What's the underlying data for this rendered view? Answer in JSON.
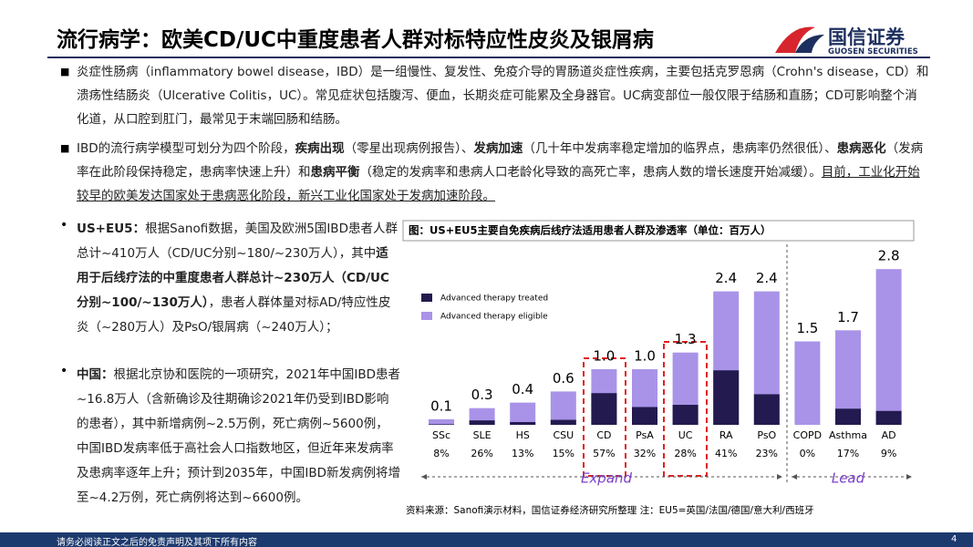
{
  "header": {
    "title": "流行病学：欧美CD/UC中重度患者人群对标特应性皮炎及银屑病",
    "logo_cn": "国信证券",
    "logo_en": "GUOSEN SECURITIES"
  },
  "top": {
    "paragraphs": [
      {
        "runs": [
          {
            "text": "炎症性肠病（inflammatory bowel disease，IBD）是一组慢性、复发性、免疫介导的胃肠道炎症性疾病，主要包括克罗恩病（Crohn's disease，CD）和溃疡性结肠炎（Ulcerative Colitis，UC）。常见症状包括腹泻、便血，长期炎症可能累及全身器官。UC病变部位一般仅限于结肠和直肠；CD可影响整个消化道，从口腔到肛门，最常见于末端回肠和结肠。"
          }
        ]
      },
      {
        "runs": [
          {
            "text": "IBD的流行病学模型可划分为四个阶段，"
          },
          {
            "text": "疾病出现",
            "style": "bold"
          },
          {
            "text": "（零星出现病例报告）、"
          },
          {
            "text": "发病加速",
            "style": "bold"
          },
          {
            "text": "（几十年中发病率稳定增加的临界点，患病率仍然很低）、"
          },
          {
            "text": "患病恶化",
            "style": "bold"
          },
          {
            "text": "（发病率在此阶段保持稳定，患病率快速上升）和"
          },
          {
            "text": "患病平衡",
            "style": "bold"
          },
          {
            "text": "（稳定的发病率和患病人口老龄化导致的高死亡率，患病人数的增长速度开始减缓）。"
          },
          {
            "text": "目前，工业化开始较早的欧美发达国家处于患病恶化阶段，新兴工业化国家处于发病加速阶段。",
            "style": "underline"
          }
        ]
      }
    ]
  },
  "left": {
    "paragraphs": [
      {
        "runs": [
          {
            "text": "US+EU5：",
            "style": "bold"
          },
          {
            "text": "根据Sanofi数据，美国及欧洲5国IBD患者人群总计~410万人（CD/UC分别~180/~230万人），其中"
          },
          {
            "text": "适用于后线疗法的中重度患者人群总计~230万人（CD/UC分别~100/~130万人）",
            "style": "bold"
          },
          {
            "text": "，患者人群体量对标AD/特应性皮炎（~280万人）及PsO/银屑病（~240万人）；"
          }
        ]
      },
      {
        "runs": [
          {
            "text": "中国：",
            "style": "bold"
          },
          {
            "text": "根据北京协和医院的一项研究，2021年中国IBD患者~16.8万人（含新确诊及往期确诊2021年仍受到IBD影响的患者），其中新增病例~2.5万例，死亡病例~5600例，中国IBD发病率低于高社会人口指数地区，但近年来发病率及患病率逐年上升；预计到2035年，中国IBD新发病例将增至~4.2万例，死亡病例将达到~6600例。"
          }
        ]
      }
    ]
  },
  "chart_data": {
    "type": "bar",
    "title": "图：US+EU5主要自免疾病后线疗法适用患者人群及渗透率（单位：百万人）",
    "categories": [
      "SSc",
      "SLE",
      "HS",
      "CSU",
      "CD",
      "PsA",
      "UC",
      "RA",
      "PsO",
      "COPD",
      "Asthma",
      "AD"
    ],
    "series": [
      {
        "name": "Advanced therapy treated",
        "color": "#231a4f",
        "values": [
          0.01,
          0.08,
          0.05,
          0.09,
          0.57,
          0.32,
          0.36,
          0.98,
          0.55,
          0,
          0.29,
          0.25
        ]
      },
      {
        "name": "Advanced therapy eligible",
        "color": "#a993e8",
        "values": [
          0.1,
          0.3,
          0.4,
          0.6,
          1,
          1,
          1.3,
          2.4,
          2.4,
          1.5,
          1.7,
          2.8
        ],
        "value_labels": [
          "0.1",
          "0.3",
          "0.4",
          "0.6",
          "1.0",
          "1.0",
          "1.3",
          "2.4",
          "2.4",
          "1.5",
          "1.7",
          "2.8"
        ]
      }
    ],
    "penetration": [
      "8%",
      "26%",
      "13%",
      "15%",
      "57%",
      "32%",
      "28%",
      "41%",
      "23%",
      "0%",
      "17%",
      "9%"
    ],
    "annotations": [
      "Expand",
      "Lead"
    ],
    "source": "资料来源：Sanofi演示材料，国信证券经济研究所整理 注：EU5=英国/法国/德国/意大利/西班牙"
  },
  "footer": {
    "disclaimer": "请务必阅读正文之后的免责声明及其项下所有内容",
    "page": "4"
  }
}
